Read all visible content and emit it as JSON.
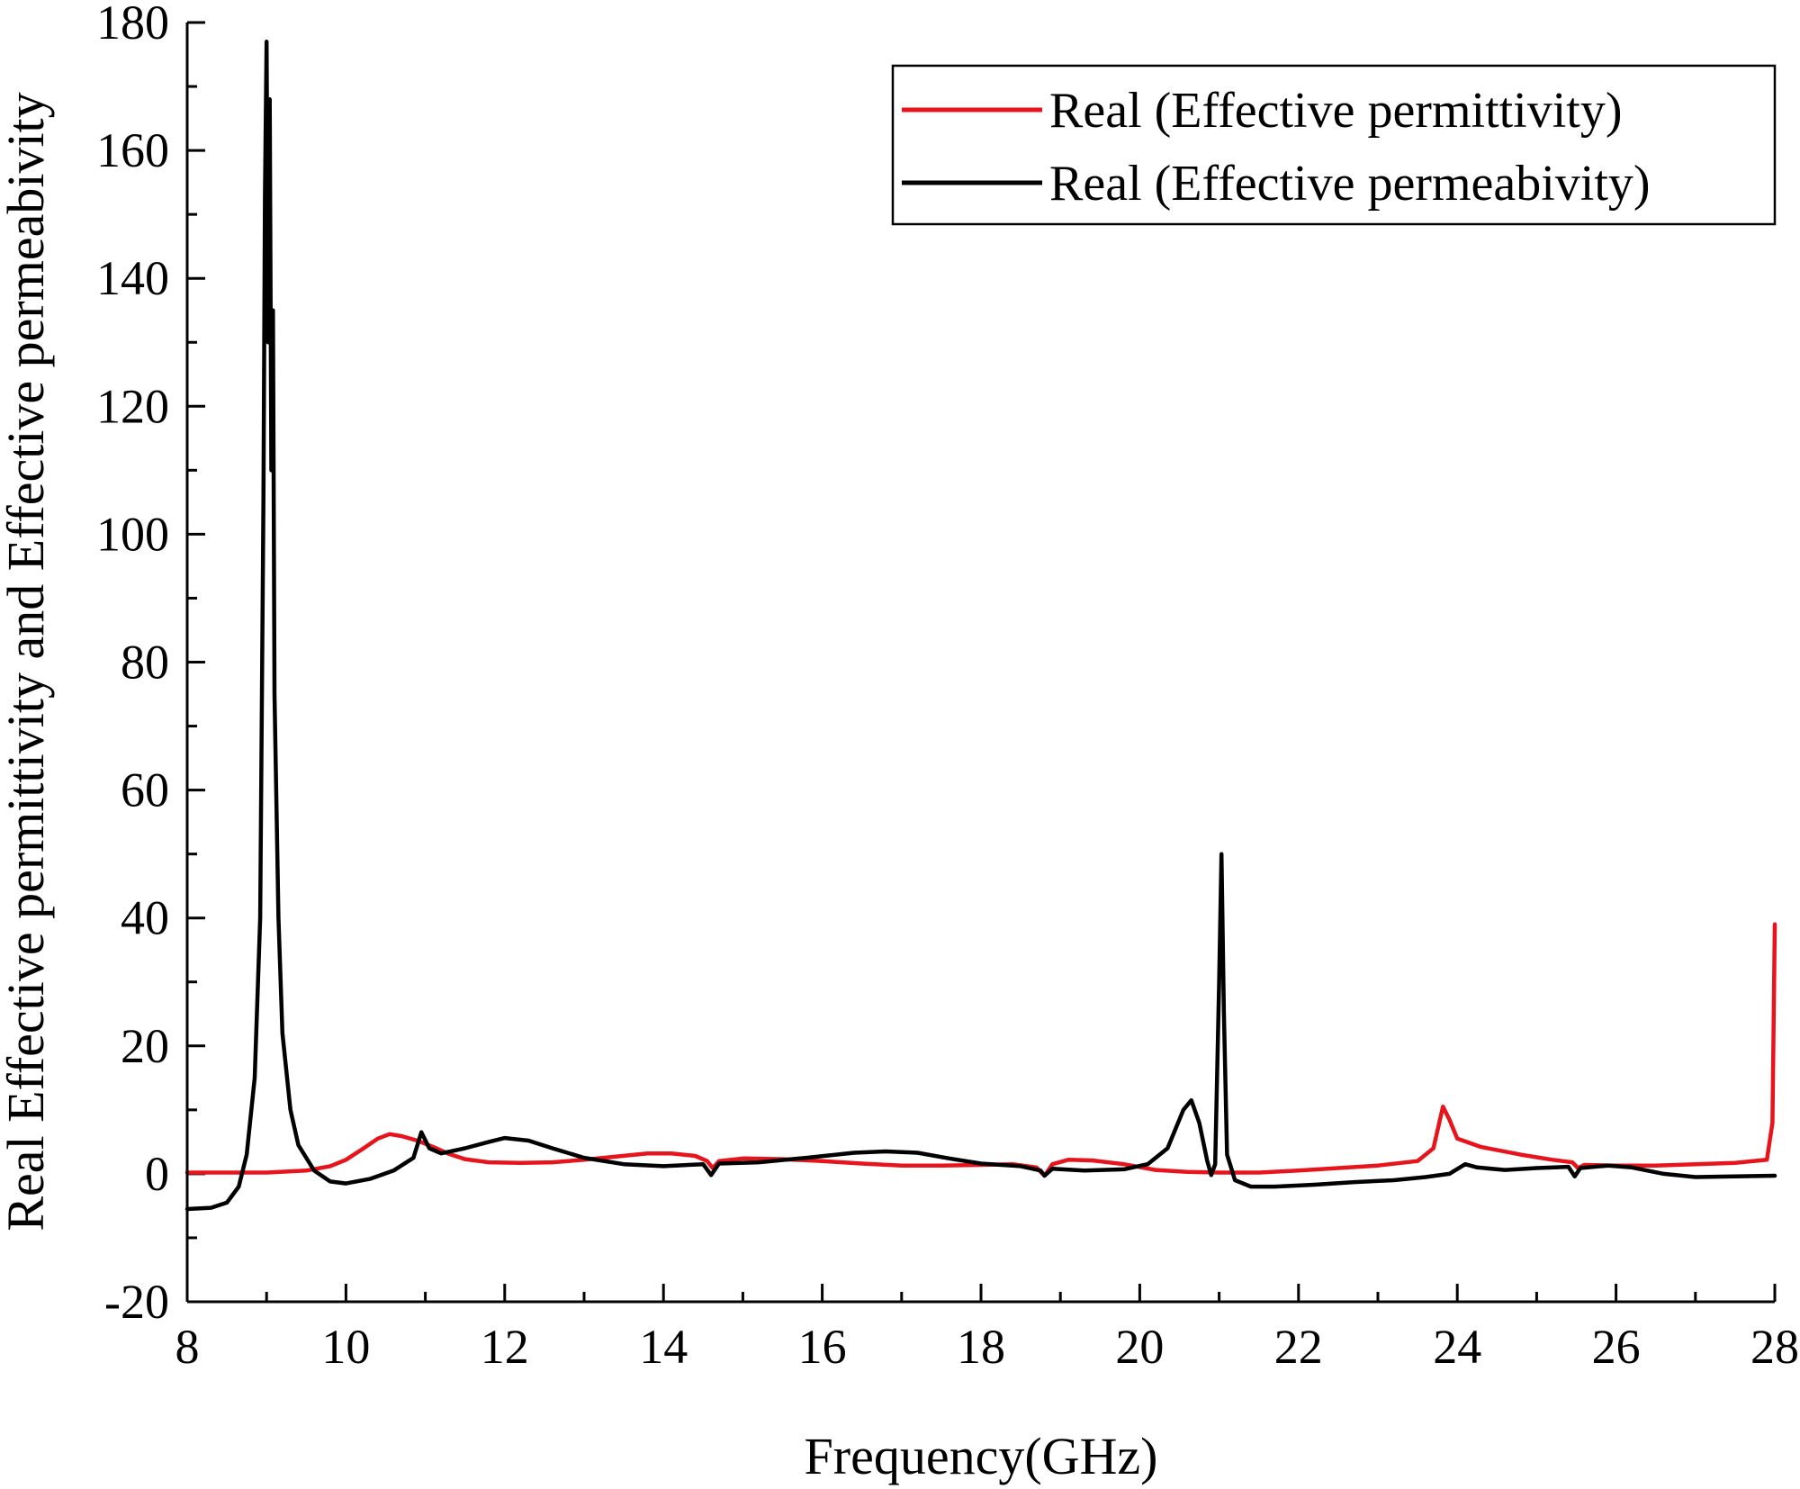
{
  "chart_data": {
    "type": "line",
    "title": "",
    "xlabel": "Frequency(GHz)",
    "ylabel": "Real Effective permittivity and Effective permeabivity",
    "xlim": [
      8,
      28
    ],
    "ylim": [
      -20,
      180
    ],
    "xticks": [
      8,
      10,
      12,
      14,
      16,
      18,
      20,
      22,
      24,
      26,
      28
    ],
    "yticks": [
      -20,
      0,
      20,
      40,
      60,
      80,
      100,
      120,
      140,
      160,
      180
    ],
    "grid": false,
    "legend_position": "top-right",
    "series": [
      {
        "name": "Real (Effective permittivity)",
        "color": "#e8141c",
        "points": [
          [
            8.0,
            0.2
          ],
          [
            9.0,
            0.2
          ],
          [
            9.5,
            0.5
          ],
          [
            9.8,
            1.2
          ],
          [
            10.0,
            2.2
          ],
          [
            10.2,
            3.8
          ],
          [
            10.4,
            5.5
          ],
          [
            10.55,
            6.2
          ],
          [
            10.7,
            5.9
          ],
          [
            10.9,
            5.2
          ],
          [
            11.1,
            4.2
          ],
          [
            11.3,
            3.1
          ],
          [
            11.5,
            2.3
          ],
          [
            11.8,
            1.8
          ],
          [
            12.2,
            1.7
          ],
          [
            12.6,
            1.8
          ],
          [
            13.0,
            2.2
          ],
          [
            13.4,
            2.7
          ],
          [
            13.8,
            3.2
          ],
          [
            14.1,
            3.2
          ],
          [
            14.4,
            2.8
          ],
          [
            14.55,
            2.0
          ],
          [
            14.62,
            0.9
          ],
          [
            14.7,
            2.0
          ],
          [
            15.0,
            2.4
          ],
          [
            15.5,
            2.3
          ],
          [
            16.0,
            2.0
          ],
          [
            16.5,
            1.6
          ],
          [
            17.0,
            1.3
          ],
          [
            17.5,
            1.3
          ],
          [
            18.0,
            1.4
          ],
          [
            18.4,
            1.5
          ],
          [
            18.7,
            1.0
          ],
          [
            18.8,
            -0.3
          ],
          [
            18.9,
            1.5
          ],
          [
            19.1,
            2.2
          ],
          [
            19.4,
            2.1
          ],
          [
            19.8,
            1.5
          ],
          [
            20.2,
            0.6
          ],
          [
            20.6,
            0.3
          ],
          [
            21.0,
            0.2
          ],
          [
            21.5,
            0.2
          ],
          [
            22.0,
            0.5
          ],
          [
            22.5,
            0.9
          ],
          [
            23.0,
            1.3
          ],
          [
            23.5,
            2.0
          ],
          [
            23.7,
            4.0
          ],
          [
            23.82,
            10.5
          ],
          [
            23.9,
            8.5
          ],
          [
            24.0,
            5.5
          ],
          [
            24.3,
            4.2
          ],
          [
            24.8,
            3.0
          ],
          [
            25.2,
            2.2
          ],
          [
            25.45,
            1.8
          ],
          [
            25.52,
            0.9
          ],
          [
            25.6,
            1.4
          ],
          [
            26.0,
            1.3
          ],
          [
            26.5,
            1.3
          ],
          [
            27.0,
            1.5
          ],
          [
            27.5,
            1.7
          ],
          [
            27.9,
            2.2
          ],
          [
            27.97,
            8.0
          ],
          [
            28.0,
            39.0
          ]
        ]
      },
      {
        "name": "Real (Effective permeabivity)",
        "color": "#000000",
        "points": [
          [
            8.0,
            -5.5
          ],
          [
            8.3,
            -5.3
          ],
          [
            8.5,
            -4.5
          ],
          [
            8.65,
            -2.0
          ],
          [
            8.75,
            3.0
          ],
          [
            8.85,
            15.0
          ],
          [
            8.92,
            40.0
          ],
          [
            8.96,
            105.0
          ],
          [
            8.98,
            153.0
          ],
          [
            9.0,
            177.0
          ],
          [
            9.02,
            130.0
          ],
          [
            9.04,
            168.0
          ],
          [
            9.06,
            110.0
          ],
          [
            9.08,
            135.0
          ],
          [
            9.1,
            75.0
          ],
          [
            9.15,
            40.0
          ],
          [
            9.2,
            22.0
          ],
          [
            9.3,
            10.0
          ],
          [
            9.4,
            4.5
          ],
          [
            9.6,
            0.5
          ],
          [
            9.8,
            -1.2
          ],
          [
            10.0,
            -1.5
          ],
          [
            10.3,
            -0.8
          ],
          [
            10.6,
            0.5
          ],
          [
            10.85,
            2.5
          ],
          [
            10.95,
            6.5
          ],
          [
            11.05,
            4.0
          ],
          [
            11.2,
            3.2
          ],
          [
            11.5,
            4.0
          ],
          [
            11.8,
            5.0
          ],
          [
            12.0,
            5.6
          ],
          [
            12.3,
            5.2
          ],
          [
            12.6,
            4.0
          ],
          [
            13.0,
            2.5
          ],
          [
            13.5,
            1.5
          ],
          [
            14.0,
            1.2
          ],
          [
            14.5,
            1.5
          ],
          [
            14.6,
            -0.2
          ],
          [
            14.7,
            1.6
          ],
          [
            15.2,
            1.8
          ],
          [
            15.8,
            2.5
          ],
          [
            16.4,
            3.3
          ],
          [
            16.8,
            3.5
          ],
          [
            17.2,
            3.3
          ],
          [
            17.6,
            2.4
          ],
          [
            18.0,
            1.6
          ],
          [
            18.5,
            1.2
          ],
          [
            18.75,
            0.5
          ],
          [
            18.8,
            -0.3
          ],
          [
            18.9,
            0.8
          ],
          [
            19.3,
            0.5
          ],
          [
            19.8,
            0.7
          ],
          [
            20.1,
            1.5
          ],
          [
            20.35,
            4.0
          ],
          [
            20.55,
            10.0
          ],
          [
            20.65,
            11.5
          ],
          [
            20.75,
            8.0
          ],
          [
            20.85,
            2.0
          ],
          [
            20.9,
            -0.2
          ],
          [
            20.95,
            1.5
          ],
          [
            21.0,
            30.0
          ],
          [
            21.03,
            50.0
          ],
          [
            21.06,
            25.0
          ],
          [
            21.1,
            3.0
          ],
          [
            21.2,
            -1.0
          ],
          [
            21.4,
            -2.0
          ],
          [
            21.7,
            -2.0
          ],
          [
            22.2,
            -1.7
          ],
          [
            22.7,
            -1.3
          ],
          [
            23.2,
            -1.0
          ],
          [
            23.6,
            -0.5
          ],
          [
            23.9,
            0.0
          ],
          [
            24.1,
            1.5
          ],
          [
            24.25,
            1.0
          ],
          [
            24.6,
            0.6
          ],
          [
            25.0,
            0.9
          ],
          [
            25.4,
            1.1
          ],
          [
            25.48,
            -0.4
          ],
          [
            25.55,
            0.9
          ],
          [
            25.9,
            1.3
          ],
          [
            26.2,
            1.0
          ],
          [
            26.6,
            0.0
          ],
          [
            27.0,
            -0.5
          ],
          [
            27.5,
            -0.4
          ],
          [
            28.0,
            -0.3
          ]
        ]
      }
    ]
  }
}
